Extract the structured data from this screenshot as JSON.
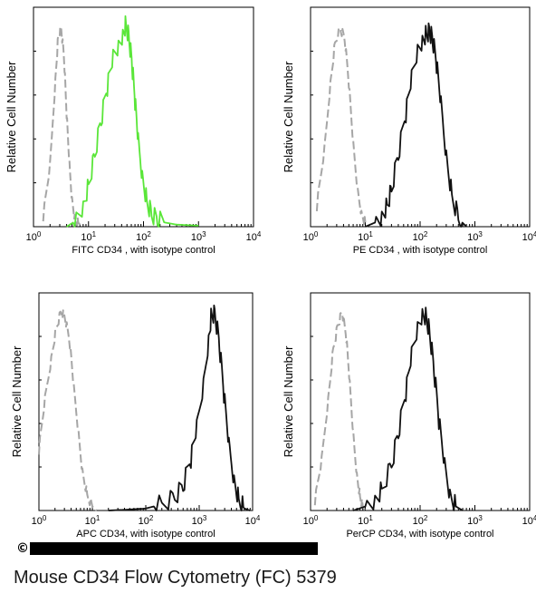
{
  "footer": {
    "caption": "Mouse CD34 Flow Cytometry (FC) 5379",
    "copyright_symbol": "©"
  },
  "colors": {
    "isotype": "#a6a6a6",
    "fitc": "#5ae639",
    "stain": "#111111"
  },
  "chart_data": [
    {
      "type": "line",
      "panel": "FITC",
      "xlabel": "FITC  CD34 , with isotype control",
      "ylabel": "Relative Cell Number",
      "x_scale": "log",
      "xlim": [
        1,
        10000
      ],
      "x_ticks": [
        "10^0",
        "10^1",
        "10^2",
        "10^3",
        "10^4"
      ],
      "series": [
        {
          "style": "dashed",
          "color": "#a6a6a6",
          "x": [
            1.5,
            2.0,
            2.5,
            2.8,
            3.2,
            3.6,
            4.0,
            4.5,
            5.0,
            5.6,
            6.5,
            7.5
          ],
          "y": [
            0.05,
            0.3,
            0.72,
            0.93,
            0.97,
            0.82,
            0.55,
            0.3,
            0.13,
            0.05,
            0.02,
            0.0
          ]
        },
        {
          "style": "solid",
          "color": "#5ae639",
          "x": [
            4,
            6,
            8,
            10,
            13,
            17,
            22,
            28,
            35,
            42,
            48,
            55,
            62,
            70,
            80,
            95,
            115,
            140,
            180,
            250,
            400,
            1000
          ],
          "y": [
            0.0,
            0.03,
            0.1,
            0.2,
            0.35,
            0.52,
            0.68,
            0.82,
            0.88,
            0.95,
            1.0,
            0.92,
            0.8,
            0.62,
            0.42,
            0.25,
            0.12,
            0.06,
            0.03,
            0.02,
            0.01,
            0.005
          ]
        }
      ]
    },
    {
      "type": "line",
      "panel": "PE",
      "xlabel": "PE  CD34 , with isotype control",
      "ylabel": "Relative Cell Number",
      "x_scale": "log",
      "xlim": [
        1,
        10000
      ],
      "x_ticks": [
        "10^0",
        "10^1",
        "10^2",
        "10^3",
        "10^4"
      ],
      "series": [
        {
          "style": "dashed",
          "color": "#a6a6a6",
          "x": [
            1.3,
            1.8,
            2.3,
            2.8,
            3.5,
            4.2,
            5.0,
            6.0,
            7.2,
            8.5,
            10,
            11
          ],
          "y": [
            0.1,
            0.38,
            0.7,
            0.9,
            0.97,
            0.92,
            0.7,
            0.4,
            0.18,
            0.07,
            0.02,
            0.0
          ]
        },
        {
          "style": "solid",
          "color": "#111111",
          "x": [
            10,
            15,
            20,
            25,
            30,
            40,
            55,
            70,
            90,
            110,
            130,
            150,
            170,
            200,
            240,
            300,
            380,
            500,
            700
          ],
          "y": [
            0.0,
            0.02,
            0.05,
            0.1,
            0.18,
            0.35,
            0.55,
            0.72,
            0.86,
            0.92,
            0.95,
            0.96,
            0.92,
            0.8,
            0.6,
            0.35,
            0.15,
            0.04,
            0.0
          ]
        }
      ]
    },
    {
      "type": "line",
      "panel": "APC",
      "xlabel": "APC CD34, with isotype control",
      "ylabel": "Relative Cell Number",
      "x_scale": "log",
      "xlim": [
        1,
        10000
      ],
      "x_ticks": [
        "10^0",
        "10^1",
        "10^2",
        "10^3",
        "10^4"
      ],
      "series": [
        {
          "style": "dashed",
          "color": "#a6a6a6",
          "x": [
            1.0,
            1.3,
            1.7,
            2.1,
            2.6,
            3.1,
            3.8,
            4.5,
            5.5,
            6.5,
            8.0,
            10,
            12
          ],
          "y": [
            0.3,
            0.55,
            0.75,
            0.9,
            0.98,
            0.95,
            0.82,
            0.6,
            0.38,
            0.2,
            0.08,
            0.02,
            0.0
          ]
        },
        {
          "style": "solid",
          "color": "#111111",
          "x": [
            20,
            50,
            100,
            200,
            350,
            500,
            700,
            900,
            1200,
            1500,
            1700,
            2000,
            2400,
            2900,
            3600,
            4500,
            5500,
            7000,
            9000
          ],
          "y": [
            0.0,
            0.005,
            0.01,
            0.03,
            0.06,
            0.12,
            0.25,
            0.4,
            0.62,
            0.85,
            0.98,
            0.97,
            0.82,
            0.58,
            0.32,
            0.15,
            0.05,
            0.01,
            0.0
          ]
        }
      ]
    },
    {
      "type": "line",
      "panel": "PerCP",
      "xlabel": "PerCP CD34, with isotype control",
      "ylabel": "Relative Cell Number",
      "x_scale": "log",
      "xlim": [
        1,
        10000
      ],
      "x_ticks": [
        "10^0",
        "10^1",
        "10^2",
        "10^3",
        "10^4"
      ],
      "series": [
        {
          "style": "dashed",
          "color": "#a6a6a6",
          "x": [
            1.2,
            1.6,
            2.1,
            2.6,
            3.2,
            3.8,
            4.5,
            5.2,
            6.0,
            7.0,
            8.0,
            9.0,
            10
          ],
          "y": [
            0.05,
            0.25,
            0.55,
            0.8,
            0.92,
            0.98,
            0.85,
            0.62,
            0.38,
            0.18,
            0.07,
            0.02,
            0.0
          ]
        },
        {
          "style": "solid",
          "color": "#111111",
          "x": [
            6,
            10,
            15,
            20,
            30,
            40,
            55,
            70,
            90,
            110,
            130,
            150,
            180,
            220,
            280,
            350,
            450,
            600
          ],
          "y": [
            0.0,
            0.02,
            0.05,
            0.1,
            0.22,
            0.38,
            0.58,
            0.76,
            0.9,
            0.98,
            0.96,
            0.88,
            0.7,
            0.45,
            0.22,
            0.08,
            0.02,
            0.0
          ]
        }
      ]
    }
  ]
}
